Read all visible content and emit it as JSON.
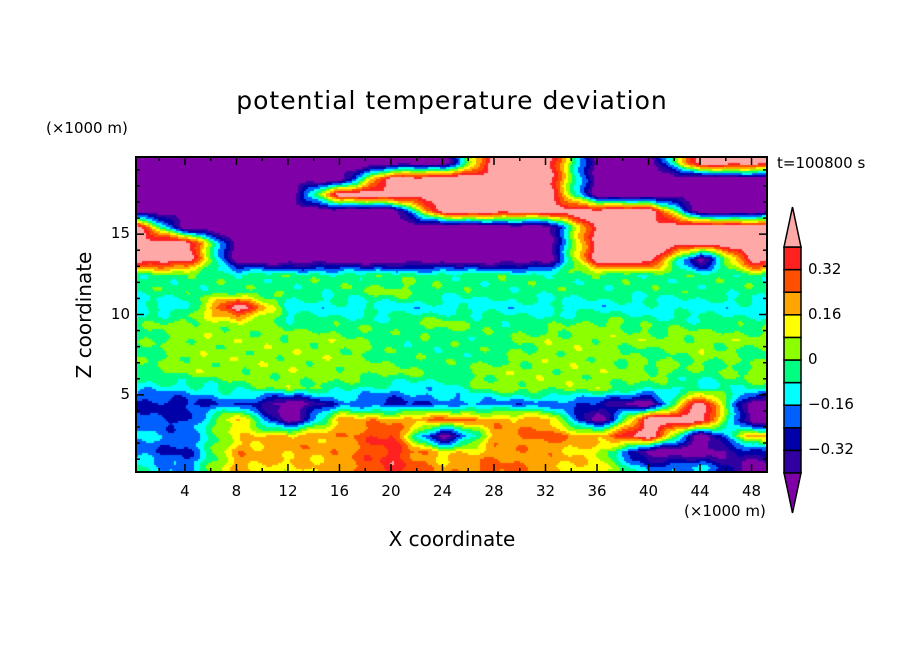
{
  "chart_data": {
    "type": "heatmap",
    "subtype": "filled-contour",
    "title": "potential temperature deviation",
    "xlabel": "X coordinate",
    "ylabel": "Z coordinate",
    "x_unit": "(×1000 m)",
    "y_unit": "(×1000 m)",
    "time_label": "t=100800 s",
    "xlim": [
      0.2,
      49.2
    ],
    "ylim": [
      0.2,
      19.8
    ],
    "xticks": [
      4,
      8,
      12,
      16,
      20,
      24,
      28,
      32,
      36,
      40,
      44,
      48
    ],
    "yticks": [
      5,
      10,
      15
    ],
    "colorbar": {
      "levels": [
        -0.4,
        -0.32,
        -0.24,
        -0.16,
        -0.08,
        0,
        0.08,
        0.16,
        0.24,
        0.32,
        0.4
      ],
      "colors": [
        "#8000a8",
        "#3000a0",
        "#0000a8",
        "#0060ff",
        "#00ffff",
        "#00ff80",
        "#8cff00",
        "#ffff00",
        "#ffa500",
        "#ff5000",
        "#ff2020",
        "#ffa8a8"
      ],
      "tick_labels": [
        "0.32",
        "0.16",
        "0",
        "−0.16",
        "−0.32"
      ],
      "tick_values": [
        0.32,
        0.16,
        0,
        -0.16,
        -0.32
      ],
      "extend": "both"
    },
    "grid_x": [
      0,
      4,
      8,
      12,
      16,
      20,
      24,
      28,
      32,
      36,
      40,
      44,
      48
    ],
    "grid_z": [
      19.5,
      18.5,
      17.5,
      16.5,
      15.5,
      14.5,
      13.5,
      12.5,
      11.5,
      10.5,
      9.5,
      8.5,
      7.5,
      6.5,
      5.5,
      4.5,
      3.5,
      2.5,
      1.5,
      0.5
    ],
    "z": [
      [
        -0.5,
        -0.5,
        -0.5,
        -0.5,
        -0.5,
        -0.5,
        -0.5,
        0.5,
        0.5,
        -0.5,
        -0.5,
        0.5,
        0.5
      ],
      [
        -0.5,
        -0.5,
        -0.5,
        -0.5,
        -0.5,
        0.5,
        0.5,
        0.5,
        0.5,
        -0.5,
        -0.5,
        -0.5,
        -0.5
      ],
      [
        -0.5,
        -0.5,
        -0.5,
        -0.5,
        0.5,
        0.5,
        0.5,
        0.5,
        0.5,
        -0.5,
        -0.5,
        -0.5,
        -0.5
      ],
      [
        -0.5,
        -0.5,
        -0.5,
        -0.5,
        -0.5,
        -0.5,
        0.5,
        0.5,
        0.5,
        0.5,
        0.5,
        -0.5,
        -0.5
      ],
      [
        0.5,
        -0.5,
        -0.5,
        -0.5,
        -0.5,
        -0.5,
        -0.5,
        -0.5,
        -0.5,
        0.5,
        0.5,
        0.5,
        0.5
      ],
      [
        0.5,
        0.5,
        -0.5,
        -0.5,
        -0.5,
        -0.5,
        -0.5,
        -0.5,
        -0.5,
        0.5,
        0.5,
        0.5,
        0.5
      ],
      [
        0.5,
        0.5,
        -0.5,
        -0.5,
        -0.5,
        -0.5,
        -0.5,
        -0.5,
        -0.5,
        0.5,
        0.5,
        -0.5,
        0.5
      ],
      [
        -0.04,
        -0.04,
        -0.04,
        -0.04,
        -0.04,
        -0.04,
        -0.04,
        -0.04,
        -0.04,
        -0.04,
        -0.04,
        -0.04,
        -0.04
      ],
      [
        -0.04,
        -0.04,
        -0.04,
        -0.04,
        -0.04,
        0.04,
        -0.04,
        -0.04,
        -0.04,
        -0.04,
        -0.04,
        -0.04,
        -0.04
      ],
      [
        -0.12,
        -0.12,
        0.5,
        -0.12,
        -0.12,
        -0.12,
        -0.12,
        -0.12,
        -0.12,
        -0.12,
        -0.12,
        -0.12,
        -0.12
      ],
      [
        -0.04,
        0.04,
        0.04,
        -0.04,
        -0.04,
        -0.04,
        0.04,
        -0.04,
        -0.04,
        0.04,
        -0.04,
        -0.04,
        -0.04
      ],
      [
        -0.04,
        0.04,
        0.04,
        0.04,
        0.04,
        -0.04,
        -0.04,
        -0.04,
        0.04,
        0.04,
        0.04,
        0.04,
        0.04
      ],
      [
        -0.04,
        0.04,
        0.04,
        0.04,
        0.04,
        -0.04,
        -0.04,
        -0.04,
        0.04,
        0.04,
        -0.04,
        0.04,
        -0.04
      ],
      [
        -0.04,
        0.04,
        0.04,
        0.04,
        0.04,
        0.04,
        -0.04,
        0.04,
        0.04,
        0.04,
        0.04,
        -0.04,
        0.04
      ],
      [
        -0.12,
        -0.12,
        -0.04,
        0.04,
        -0.04,
        -0.12,
        -0.12,
        0.04,
        0.04,
        0.04,
        -0.04,
        -0.12,
        -0.04
      ],
      [
        -0.28,
        -0.28,
        -0.2,
        -0.5,
        -0.2,
        -0.28,
        -0.2,
        -0.2,
        -0.2,
        -0.28,
        -0.5,
        0.5,
        -0.5
      ],
      [
        -0.2,
        -0.28,
        0.2,
        -0.5,
        0.2,
        0.2,
        0.28,
        0.2,
        0.2,
        -0.5,
        0.5,
        0.5,
        -0.5
      ],
      [
        -0.12,
        -0.2,
        0.12,
        0.2,
        0.2,
        0.36,
        -0.5,
        0.2,
        0.28,
        0.2,
        0.5,
        -0.5,
        0.2
      ],
      [
        -0.2,
        -0.28,
        0.2,
        0.2,
        0.2,
        0.36,
        0.12,
        0.2,
        0.2,
        0.12,
        -0.5,
        -0.5,
        -0.28
      ],
      [
        -0.04,
        -0.2,
        0.2,
        0.12,
        0.2,
        0.36,
        0.2,
        0.28,
        0.2,
        0.12,
        -0.2,
        -0.12,
        -0.5
      ]
    ]
  }
}
